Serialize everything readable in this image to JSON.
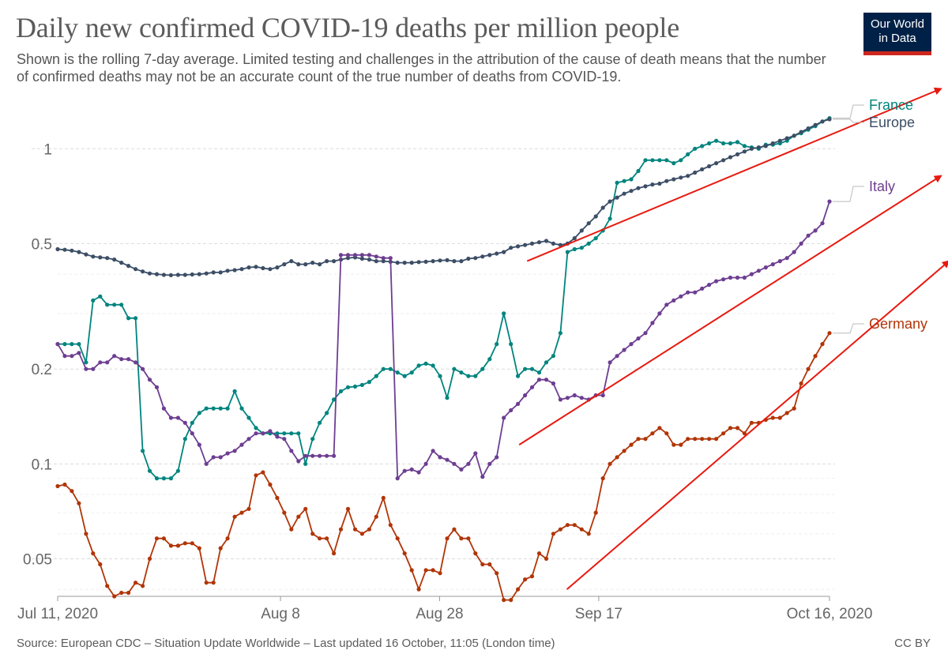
{
  "header": {
    "title": "Daily new confirmed COVID-19 deaths per million people",
    "subtitle": "Shown is the rolling 7-day average. Limited testing and challenges in the attribution of the cause of death means that the number of confirmed deaths may not be an accurate count of the true number of deaths from COVID-19."
  },
  "logo": {
    "line1": "Our World",
    "line2": "in Data",
    "bg_color": "#002147",
    "bar_color": "#ce261e"
  },
  "footer": {
    "source": "Source: European CDC – Situation Update Worldwide – Last updated 16 October, 11:05 (London time)",
    "license": "CC BY"
  },
  "chart_data": {
    "type": "line",
    "title": "Daily new confirmed COVID-19 deaths per million people",
    "y_scale": "log",
    "ylim": [
      0.038,
      1.4
    ],
    "y_ticks": [
      0.05,
      0.1,
      0.2,
      0.5,
      1
    ],
    "y_tick_labels": [
      "0.05",
      "0.1",
      "0.2",
      "0.5",
      "1"
    ],
    "x_start": "2020-07-11",
    "x_end": "2020-10-16",
    "x_ticks": [
      "2020-07-11",
      "2020-08-08",
      "2020-08-28",
      "2020-09-17",
      "2020-10-16"
    ],
    "x_tick_labels": [
      "Jul 11, 2020",
      "Aug 8",
      "Aug 28",
      "Sep 17",
      "Oct 16, 2020"
    ],
    "grid": "horizontal dashed",
    "legend": "right-side line labels",
    "series": [
      {
        "name": "France",
        "color": "#00847e",
        "values": [
          0.24,
          0.24,
          0.24,
          0.24,
          0.21,
          0.33,
          0.34,
          0.32,
          0.32,
          0.32,
          0.29,
          0.29,
          0.11,
          0.095,
          0.09,
          0.09,
          0.09,
          0.095,
          0.12,
          0.135,
          0.145,
          0.15,
          0.15,
          0.15,
          0.15,
          0.17,
          0.15,
          0.14,
          0.13,
          0.125,
          0.125,
          0.125,
          0.125,
          0.125,
          0.125,
          0.1,
          0.12,
          0.135,
          0.145,
          0.16,
          0.17,
          0.175,
          0.176,
          0.178,
          0.182,
          0.19,
          0.2,
          0.2,
          0.195,
          0.19,
          0.195,
          0.205,
          0.208,
          0.205,
          0.19,
          0.162,
          0.2,
          0.195,
          0.19,
          0.19,
          0.2,
          0.215,
          0.24,
          0.3,
          0.24,
          0.19,
          0.2,
          0.2,
          0.195,
          0.21,
          0.22,
          0.26,
          0.47,
          0.48,
          0.485,
          0.5,
          0.52,
          0.55,
          0.6,
          0.78,
          0.79,
          0.8,
          0.85,
          0.92,
          0.92,
          0.92,
          0.92,
          0.9,
          0.92,
          0.96,
          1.0,
          1.02,
          1.04,
          1.06,
          1.04,
          1.04,
          1.05,
          1.02,
          1.01,
          1.0,
          1.03,
          1.03,
          1.04,
          1.06,
          1.1,
          1.12,
          1.15,
          1.18,
          1.22,
          1.25
        ]
      },
      {
        "name": "Europe",
        "color": "#3c4e66",
        "values": [
          0.48,
          0.478,
          0.475,
          0.47,
          0.462,
          0.455,
          0.452,
          0.45,
          0.445,
          0.435,
          0.425,
          0.415,
          0.408,
          0.402,
          0.4,
          0.398,
          0.397,
          0.398,
          0.398,
          0.399,
          0.4,
          0.402,
          0.405,
          0.405,
          0.41,
          0.412,
          0.415,
          0.42,
          0.422,
          0.418,
          0.415,
          0.42,
          0.43,
          0.44,
          0.43,
          0.43,
          0.435,
          0.43,
          0.44,
          0.44,
          0.445,
          0.45,
          0.452,
          0.448,
          0.445,
          0.44,
          0.44,
          0.438,
          0.435,
          0.435,
          0.435,
          0.437,
          0.438,
          0.44,
          0.442,
          0.443,
          0.44,
          0.44,
          0.448,
          0.45,
          0.455,
          0.46,
          0.465,
          0.47,
          0.485,
          0.49,
          0.495,
          0.5,
          0.505,
          0.51,
          0.5,
          0.495,
          0.5,
          0.52,
          0.55,
          0.58,
          0.61,
          0.65,
          0.68,
          0.7,
          0.72,
          0.735,
          0.75,
          0.76,
          0.77,
          0.775,
          0.79,
          0.8,
          0.81,
          0.82,
          0.84,
          0.86,
          0.88,
          0.9,
          0.92,
          0.94,
          0.96,
          0.98,
          1.0,
          1.01,
          1.02,
          1.04,
          1.06,
          1.08,
          1.1,
          1.13,
          1.16,
          1.19,
          1.22,
          1.24
        ]
      },
      {
        "name": "Italy",
        "color": "#6d3e91",
        "values": [
          0.24,
          0.22,
          0.22,
          0.225,
          0.2,
          0.2,
          0.21,
          0.21,
          0.22,
          0.215,
          0.215,
          0.21,
          0.2,
          0.185,
          0.175,
          0.15,
          0.14,
          0.14,
          0.135,
          0.125,
          0.115,
          0.1,
          0.105,
          0.105,
          0.108,
          0.11,
          0.115,
          0.12,
          0.125,
          0.125,
          0.127,
          0.122,
          0.12,
          0.11,
          0.102,
          0.106,
          0.106,
          0.106,
          0.106,
          0.106,
          0.46,
          0.46,
          0.46,
          0.46,
          0.46,
          0.455,
          0.45,
          0.45,
          0.09,
          0.095,
          0.096,
          0.094,
          0.1,
          0.11,
          0.105,
          0.103,
          0.1,
          0.096,
          0.1,
          0.108,
          0.091,
          0.1,
          0.105,
          0.14,
          0.148,
          0.155,
          0.165,
          0.175,
          0.185,
          0.185,
          0.18,
          0.16,
          0.162,
          0.165,
          0.162,
          0.16,
          0.165,
          0.165,
          0.21,
          0.22,
          0.23,
          0.24,
          0.25,
          0.26,
          0.28,
          0.3,
          0.32,
          0.33,
          0.34,
          0.35,
          0.35,
          0.36,
          0.37,
          0.38,
          0.385,
          0.39,
          0.39,
          0.39,
          0.4,
          0.41,
          0.42,
          0.43,
          0.44,
          0.45,
          0.47,
          0.5,
          0.53,
          0.55,
          0.58,
          0.68
        ]
      },
      {
        "name": "Germany",
        "color": "#b13507",
        "values": [
          0.085,
          0.086,
          0.082,
          0.075,
          0.06,
          0.052,
          0.048,
          0.041,
          0.038,
          0.039,
          0.039,
          0.042,
          0.041,
          0.05,
          0.058,
          0.058,
          0.055,
          0.055,
          0.056,
          0.056,
          0.054,
          0.042,
          0.042,
          0.054,
          0.058,
          0.068,
          0.07,
          0.072,
          0.092,
          0.094,
          0.086,
          0.078,
          0.07,
          0.062,
          0.068,
          0.072,
          0.06,
          0.058,
          0.058,
          0.052,
          0.062,
          0.072,
          0.062,
          0.06,
          0.062,
          0.068,
          0.078,
          0.064,
          0.058,
          0.052,
          0.046,
          0.04,
          0.046,
          0.046,
          0.045,
          0.058,
          0.062,
          0.058,
          0.058,
          0.052,
          0.048,
          0.048,
          0.045,
          0.037,
          0.037,
          0.04,
          0.043,
          0.044,
          0.052,
          0.05,
          0.06,
          0.062,
          0.064,
          0.064,
          0.062,
          0.06,
          0.07,
          0.09,
          0.1,
          0.105,
          0.11,
          0.115,
          0.12,
          0.12,
          0.125,
          0.13,
          0.125,
          0.115,
          0.115,
          0.12,
          0.12,
          0.12,
          0.12,
          0.12,
          0.125,
          0.13,
          0.13,
          0.125,
          0.135,
          0.135,
          0.138,
          0.14,
          0.14,
          0.145,
          0.15,
          0.18,
          0.2,
          0.22,
          0.24,
          0.26
        ]
      }
    ],
    "annotation_color": "#e8190f"
  }
}
